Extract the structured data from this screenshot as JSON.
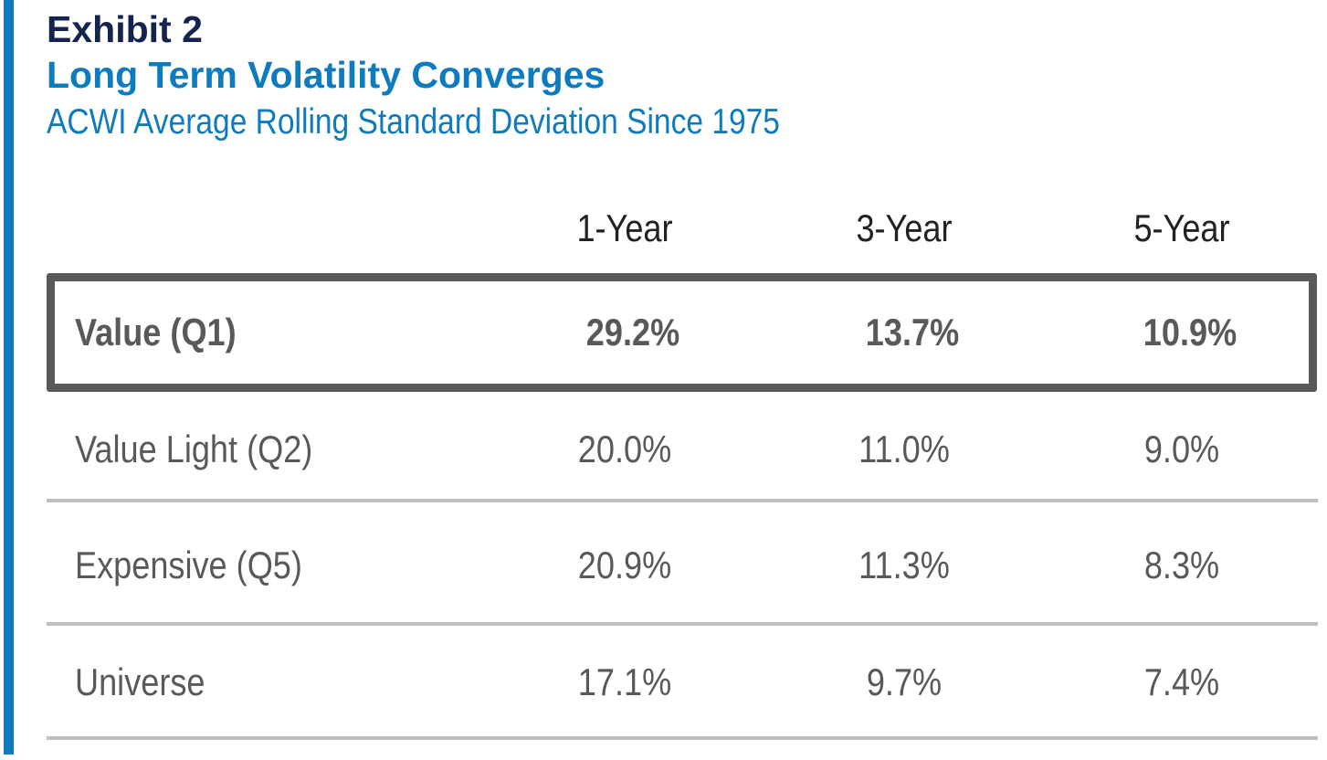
{
  "header": {
    "exhibit": "Exhibit 2",
    "title": "Long Term Volatility Converges",
    "subtitle": "ACWI Average Rolling Standard Deviation Since 1975"
  },
  "colors": {
    "accent": "#0e7bbf",
    "navy": "#14234f",
    "text_gray": "#58595b",
    "rule_gray": "#bfbfbf"
  },
  "chart_data": {
    "type": "table",
    "title": "Long Term Volatility Converges",
    "subtitle": "ACWI Average Rolling Standard Deviation Since 1975",
    "columns": [
      "1-Year",
      "3-Year",
      "5-Year"
    ],
    "rows": [
      {
        "label": "Value (Q1)",
        "values": [
          "29.2%",
          "13.7%",
          "10.9%"
        ],
        "highlighted": true
      },
      {
        "label": "Value Light (Q2)",
        "values": [
          "20.0%",
          "11.0%",
          "9.0%"
        ],
        "highlighted": false
      },
      {
        "label": "Expensive (Q5)",
        "values": [
          "20.9%",
          "11.3%",
          "8.3%"
        ],
        "highlighted": false
      },
      {
        "label": "Universe",
        "values": [
          "17.1%",
          "9.7%",
          "7.4%"
        ],
        "highlighted": false
      }
    ]
  }
}
